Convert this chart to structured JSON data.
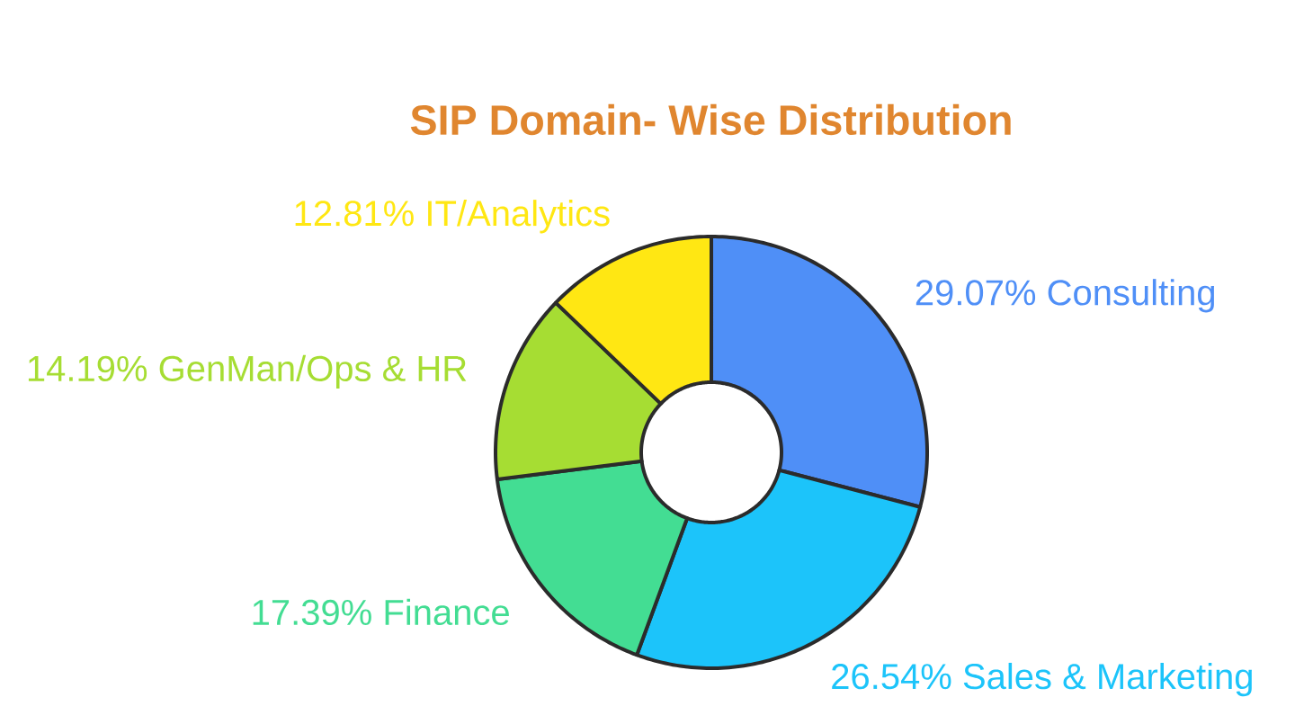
{
  "chart_data": {
    "type": "donut",
    "title": "SIP Domain- Wise Distribution",
    "categories": [
      "Consulting",
      "Sales & Marketing",
      "Finance",
      "GenMan/Ops & HR",
      "IT/Analytics"
    ],
    "values": [
      29.07,
      26.54,
      17.39,
      14.19,
      12.81
    ],
    "colors": [
      "#4f8ff7",
      "#1cc4fa",
      "#43dd93",
      "#a6dd33",
      "#ffe713"
    ],
    "value_labels": [
      "29.07%",
      "26.54%",
      "17.39%",
      "14.19%",
      "12.81%"
    ]
  }
}
